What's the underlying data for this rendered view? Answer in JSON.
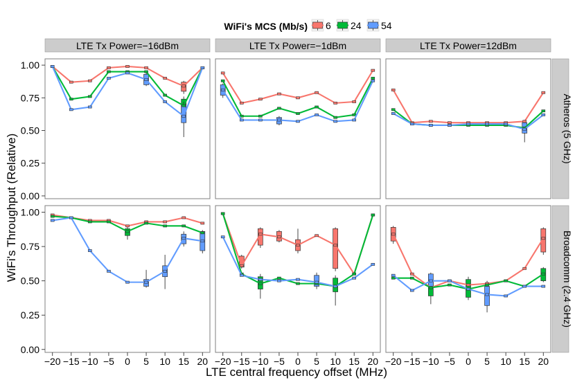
{
  "chart_data": {
    "type": "line",
    "facet_layout": "2 rows x 3 columns, box plots with median lines",
    "legend": {
      "title": "WiFi's MCS (Mb/s)",
      "entries": [
        "6",
        "24",
        "54"
      ],
      "placement": "top"
    },
    "xlabel": "LTE central frequency offset (MHz)",
    "ylabel": "WiFi's Throughput (Relative)",
    "x": [
      -20,
      -15,
      -10,
      -5,
      0,
      5,
      10,
      15,
      20
    ],
    "x_tick_labels": [
      "−20",
      "−15",
      "−10",
      "−5",
      "0",
      "5",
      "10",
      "15",
      "20"
    ],
    "ylim": [
      0,
      1
    ],
    "y_ticks": [
      0,
      0.25,
      0.5,
      0.75,
      1
    ],
    "y_tick_labels": [
      "0.00",
      "0.25",
      "0.50",
      "0.75",
      "1.00"
    ],
    "column_labels": [
      "LTE Tx Power=−16dBm",
      "LTE Tx Power=−1dBm",
      "LTE Tx Power=12dBm"
    ],
    "row_labels": [
      "Atheros (5 GHz)",
      "Broadcomm (2.4 GHz)"
    ],
    "series_colors": {
      "6": "#F8766D",
      "24": "#00BA38",
      "54": "#619CFF"
    },
    "panels": [
      {
        "row": 0,
        "col": 0,
        "series": [
          {
            "name": "6",
            "values": [
              0.99,
              0.87,
              0.88,
              0.98,
              0.99,
              0.98,
              0.9,
              0.84,
              0.98
            ]
          },
          {
            "name": "24",
            "values": [
              0.99,
              0.74,
              0.76,
              0.95,
              0.95,
              0.95,
              0.77,
              0.69,
              0.98
            ]
          },
          {
            "name": "54",
            "values": [
              0.99,
              0.66,
              0.68,
              0.9,
              0.94,
              0.89,
              0.72,
              0.61,
              0.98
            ]
          }
        ],
        "boxes": [
          {
            "name": "6",
            "x": 15,
            "q1": 0.8,
            "q3": 0.87,
            "min": 0.78,
            "max": 0.88
          },
          {
            "name": "24",
            "x": 15,
            "q1": 0.63,
            "q3": 0.74,
            "min": 0.58,
            "max": 0.76
          },
          {
            "name": "54",
            "x": 15,
            "q1": 0.56,
            "q3": 0.7,
            "min": 0.45,
            "max": 0.72
          },
          {
            "name": "54",
            "x": 5,
            "q1": 0.85,
            "q3": 0.93,
            "min": 0.84,
            "max": 0.95
          }
        ]
      },
      {
        "row": 0,
        "col": 1,
        "series": [
          {
            "name": "6",
            "values": [
              0.94,
              0.71,
              0.74,
              0.78,
              0.75,
              0.79,
              0.71,
              0.72,
              0.96
            ]
          },
          {
            "name": "24",
            "values": [
              0.88,
              0.61,
              0.61,
              0.67,
              0.63,
              0.68,
              0.6,
              0.62,
              0.9
            ]
          },
          {
            "name": "54",
            "values": [
              0.81,
              0.58,
              0.58,
              0.58,
              0.57,
              0.62,
              0.57,
              0.58,
              0.88
            ]
          }
        ],
        "boxes": [
          {
            "name": "54",
            "x": -20,
            "q1": 0.77,
            "q3": 0.85,
            "min": 0.75,
            "max": 0.86
          },
          {
            "name": "54",
            "x": -5,
            "q1": 0.55,
            "q3": 0.6,
            "min": 0.54,
            "max": 0.61
          }
        ]
      },
      {
        "row": 0,
        "col": 2,
        "series": [
          {
            "name": "6",
            "values": [
              0.81,
              0.56,
              0.57,
              0.56,
              0.56,
              0.56,
              0.56,
              0.57,
              0.79
            ]
          },
          {
            "name": "24",
            "values": [
              0.66,
              0.55,
              0.54,
              0.54,
              0.54,
              0.54,
              0.54,
              0.52,
              0.65
            ]
          },
          {
            "name": "54",
            "values": [
              0.63,
              0.55,
              0.54,
              0.54,
              0.55,
              0.55,
              0.55,
              0.51,
              0.62
            ]
          }
        ],
        "boxes": [
          {
            "name": "54",
            "x": 15,
            "q1": 0.48,
            "q3": 0.56,
            "min": 0.41,
            "max": 0.58
          }
        ]
      },
      {
        "row": 1,
        "col": 0,
        "series": [
          {
            "name": "6",
            "values": [
              0.98,
              0.96,
              0.94,
              0.94,
              0.9,
              0.93,
              0.93,
              0.96,
              0.92
            ]
          },
          {
            "name": "24",
            "values": [
              0.97,
              0.96,
              0.93,
              0.93,
              0.86,
              0.92,
              0.9,
              0.9,
              0.85
            ]
          },
          {
            "name": "54",
            "values": [
              0.94,
              0.96,
              0.72,
              0.57,
              0.49,
              0.49,
              0.57,
              0.81,
              0.79
            ]
          }
        ],
        "boxes": [
          {
            "name": "54",
            "x": 10,
            "q1": 0.53,
            "q3": 0.61,
            "min": 0.44,
            "max": 0.69
          },
          {
            "name": "54",
            "x": 15,
            "q1": 0.77,
            "q3": 0.84,
            "min": 0.75,
            "max": 0.86
          },
          {
            "name": "54",
            "x": 20,
            "q1": 0.72,
            "q3": 0.86,
            "min": 0.7,
            "max": 0.87
          },
          {
            "name": "54",
            "x": 5,
            "q1": 0.46,
            "q3": 0.51,
            "min": 0.45,
            "max": 0.58
          },
          {
            "name": "24",
            "x": 0,
            "q1": 0.83,
            "q3": 0.88,
            "min": 0.8,
            "max": 0.9
          }
        ]
      },
      {
        "row": 1,
        "col": 1,
        "series": [
          {
            "name": "6",
            "values": [
              0.99,
              0.61,
              0.84,
              0.82,
              0.76,
              0.83,
              0.76,
              0.55,
              0.98
            ]
          },
          {
            "name": "24",
            "values": [
              0.99,
              0.55,
              0.48,
              0.52,
              0.48,
              0.48,
              0.46,
              0.55,
              0.98
            ]
          },
          {
            "name": "54",
            "values": [
              0.82,
              0.54,
              0.51,
              0.5,
              0.51,
              0.49,
              0.46,
              0.52,
              0.62
            ]
          }
        ],
        "boxes": [
          {
            "name": "6",
            "x": -10,
            "q1": 0.76,
            "q3": 0.88,
            "min": 0.74,
            "max": 0.89
          },
          {
            "name": "6",
            "x": -5,
            "q1": 0.79,
            "q3": 0.86,
            "min": 0.78,
            "max": 0.87
          },
          {
            "name": "6",
            "x": 0,
            "q1": 0.72,
            "q3": 0.8,
            "min": 0.7,
            "max": 0.88
          },
          {
            "name": "6",
            "x": 10,
            "q1": 0.59,
            "q3": 0.88,
            "min": 0.57,
            "max": 0.89
          },
          {
            "name": "6",
            "x": -15,
            "q1": 0.6,
            "q3": 0.68,
            "min": 0.59,
            "max": 0.69
          },
          {
            "name": "24",
            "x": 10,
            "q1": 0.42,
            "q3": 0.52,
            "min": 0.32,
            "max": 0.54
          },
          {
            "name": "24",
            "x": -10,
            "q1": 0.44,
            "q3": 0.53,
            "min": 0.37,
            "max": 0.55
          },
          {
            "name": "54",
            "x": 5,
            "q1": 0.46,
            "q3": 0.54,
            "min": 0.44,
            "max": 0.56
          }
        ]
      },
      {
        "row": 1,
        "col": 2,
        "series": [
          {
            "name": "6",
            "values": [
              0.84,
              0.55,
              0.45,
              0.5,
              0.47,
              0.48,
              0.5,
              0.59,
              0.81
            ]
          },
          {
            "name": "24",
            "values": [
              0.52,
              0.52,
              0.45,
              0.47,
              0.44,
              0.47,
              0.5,
              0.46,
              0.55
            ]
          },
          {
            "name": "54",
            "values": [
              0.54,
              0.43,
              0.5,
              0.5,
              0.44,
              0.4,
              0.39,
              0.46,
              0.46
            ]
          }
        ],
        "boxes": [
          {
            "name": "6",
            "x": -20,
            "q1": 0.79,
            "q3": 0.89,
            "min": 0.77,
            "max": 0.9
          },
          {
            "name": "6",
            "x": 20,
            "q1": 0.71,
            "q3": 0.88,
            "min": 0.69,
            "max": 0.89
          },
          {
            "name": "54",
            "x": 5,
            "q1": 0.32,
            "q3": 0.46,
            "min": 0.27,
            "max": 0.5
          },
          {
            "name": "24",
            "x": -10,
            "q1": 0.39,
            "q3": 0.49,
            "min": 0.33,
            "max": 0.52
          },
          {
            "name": "54",
            "x": -10,
            "q1": 0.46,
            "q3": 0.55,
            "min": 0.44,
            "max": 0.56
          },
          {
            "name": "24",
            "x": 0,
            "q1": 0.38,
            "q3": 0.51,
            "min": 0.36,
            "max": 0.53
          },
          {
            "name": "24",
            "x": 20,
            "q1": 0.5,
            "q3": 0.59,
            "min": 0.49,
            "max": 0.6
          }
        ]
      }
    ]
  }
}
